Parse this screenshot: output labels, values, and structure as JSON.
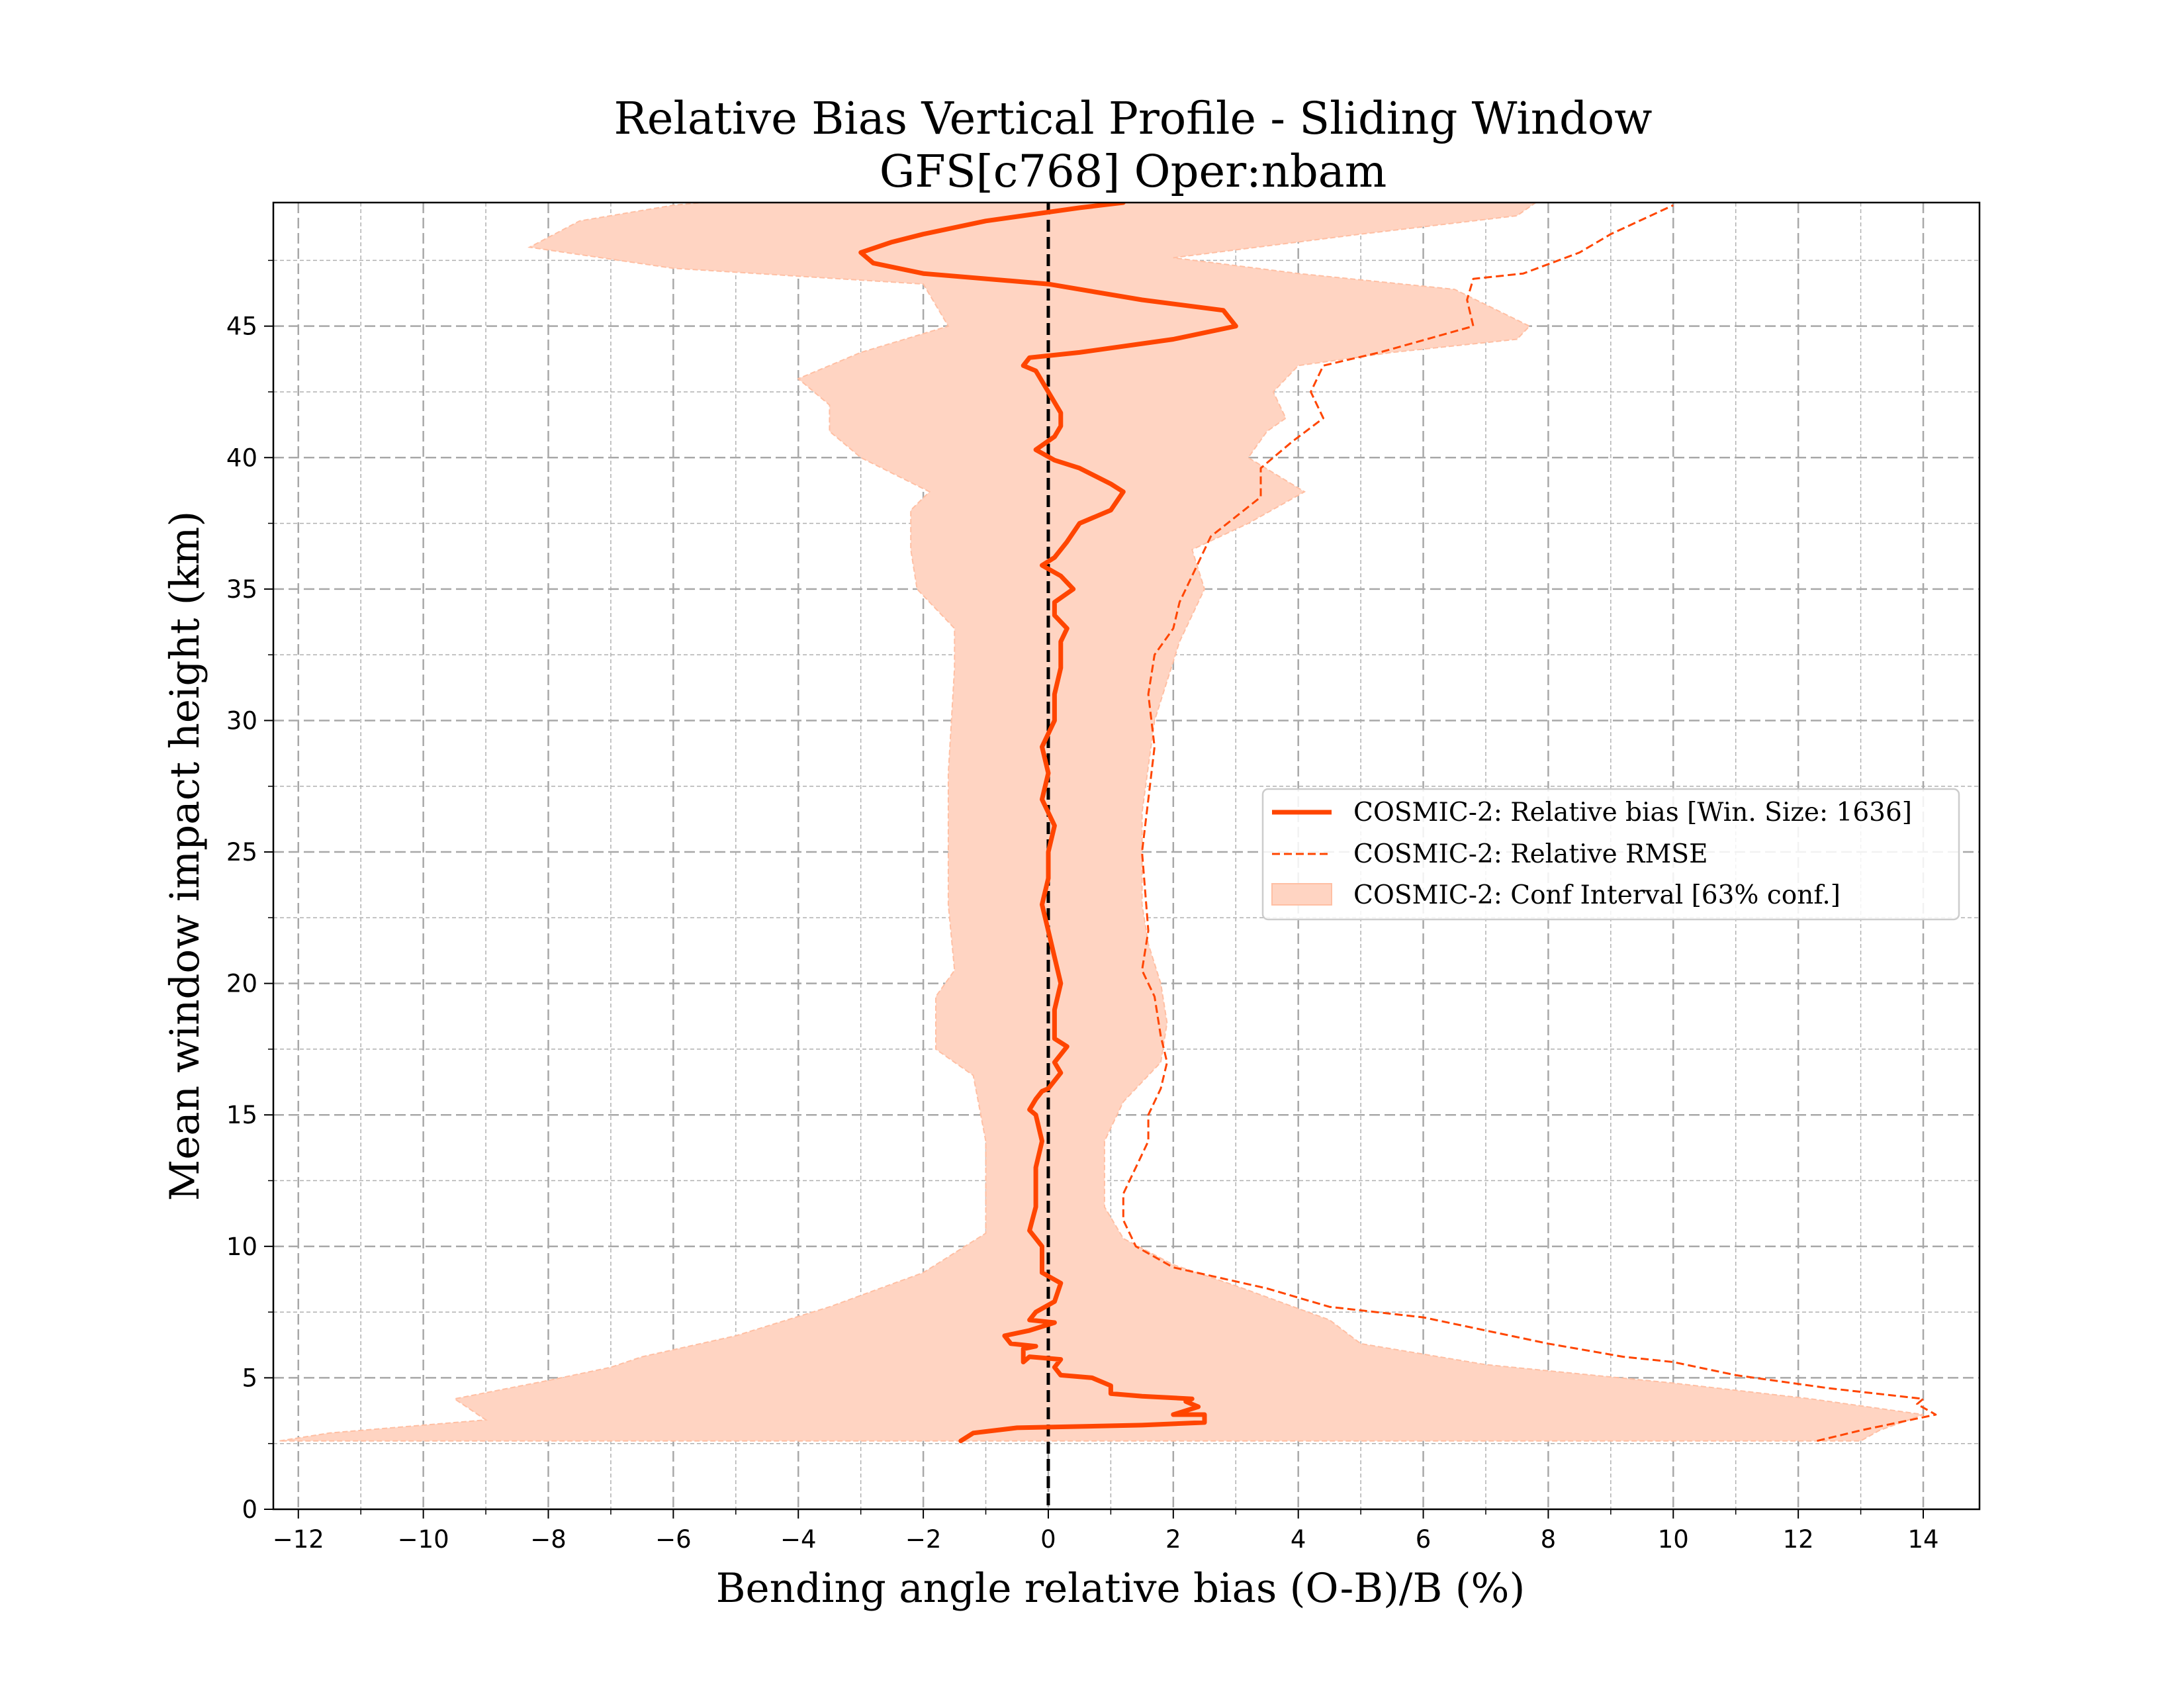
{
  "chart_data": {
    "type": "line",
    "title": "Relative Bias Vertical Profile - Sliding Window",
    "subtitle": "GFS[c768] Oper:nbam",
    "xlabel": "Bending angle relative bias (O-B)/B (%)",
    "ylabel": "Mean window impact height (km)",
    "xlim": [
      -12.4,
      14.9
    ],
    "ylim": [
      0,
      49.7
    ],
    "x_ticks": [
      -12,
      -10,
      -8,
      -6,
      -4,
      -2,
      0,
      2,
      4,
      6,
      8,
      10,
      12,
      14
    ],
    "x_tick_labels": [
      "−12",
      "−10",
      "−8",
      "−6",
      "−4",
      "−2",
      "0",
      "2",
      "4",
      "6",
      "8",
      "10",
      "12",
      "14"
    ],
    "y_ticks": [
      0,
      5,
      10,
      15,
      20,
      25,
      30,
      35,
      40,
      45
    ],
    "y_tick_labels": [
      "0",
      "5",
      "10",
      "15",
      "20",
      "25",
      "30",
      "35",
      "40",
      "45"
    ],
    "grid": true,
    "minor_grid": true,
    "reference_line_x": 0,
    "legend_position": "center-right",
    "colors": {
      "bias": "#ff4500",
      "rmse": "#ff4500",
      "ci_fill": "#ffd4c2",
      "ci_edge": "#ffbfa3",
      "zero_line": "#000000"
    },
    "series": [
      {
        "name": "COSMIC-2: Relative bias [Win. Size: 1636]",
        "style": "solid",
        "points": [
          [
            -1.4,
            2.6
          ],
          [
            -1.2,
            2.9
          ],
          [
            -0.5,
            3.1
          ],
          [
            1.5,
            3.2
          ],
          [
            2.5,
            3.3
          ],
          [
            2.5,
            3.6
          ],
          [
            2.0,
            3.6
          ],
          [
            2.4,
            3.9
          ],
          [
            2.2,
            4.1
          ],
          [
            2.3,
            4.2
          ],
          [
            1.5,
            4.3
          ],
          [
            1.0,
            4.4
          ],
          [
            1.0,
            4.7
          ],
          [
            0.7,
            5.0
          ],
          [
            0.2,
            5.1
          ],
          [
            0.1,
            5.4
          ],
          [
            0.2,
            5.7
          ],
          [
            -0.3,
            5.8
          ],
          [
            -0.4,
            5.6
          ],
          [
            -0.4,
            6.1
          ],
          [
            -0.2,
            6.2
          ],
          [
            -0.6,
            6.3
          ],
          [
            -0.7,
            6.6
          ],
          [
            -0.3,
            6.8
          ],
          [
            0.1,
            7.1
          ],
          [
            -0.3,
            7.2
          ],
          [
            -0.2,
            7.5
          ],
          [
            0.1,
            7.9
          ],
          [
            0.2,
            8.6
          ],
          [
            -0.1,
            9.0
          ],
          [
            -0.1,
            10.0
          ],
          [
            -0.3,
            10.6
          ],
          [
            -0.2,
            11.5
          ],
          [
            -0.2,
            12.0
          ],
          [
            -0.2,
            13.0
          ],
          [
            -0.1,
            14.0
          ],
          [
            -0.2,
            15.0
          ],
          [
            -0.3,
            15.2
          ],
          [
            -0.2,
            15.6
          ],
          [
            -0.1,
            15.9
          ],
          [
            0.0,
            16.0
          ],
          [
            0.2,
            16.6
          ],
          [
            0.1,
            17.0
          ],
          [
            0.3,
            17.6
          ],
          [
            0.1,
            17.9
          ],
          [
            0.1,
            19.0
          ],
          [
            0.2,
            20.0
          ],
          [
            0.1,
            21.0
          ],
          [
            0.0,
            22.0
          ],
          [
            -0.1,
            23.0
          ],
          [
            0.0,
            24.0
          ],
          [
            0.0,
            25.0
          ],
          [
            0.1,
            26.0
          ],
          [
            -0.1,
            27.0
          ],
          [
            0.0,
            28.0
          ],
          [
            -0.1,
            29.0
          ],
          [
            0.1,
            30.0
          ],
          [
            0.1,
            31.0
          ],
          [
            0.2,
            32.0
          ],
          [
            0.2,
            33.0
          ],
          [
            0.3,
            33.5
          ],
          [
            0.1,
            34.0
          ],
          [
            0.1,
            34.5
          ],
          [
            0.4,
            35.0
          ],
          [
            0.2,
            35.5
          ],
          [
            -0.1,
            35.9
          ],
          [
            0.1,
            36.2
          ],
          [
            0.3,
            36.8
          ],
          [
            0.5,
            37.5
          ],
          [
            1.0,
            38.0
          ],
          [
            1.2,
            38.7
          ],
          [
            1.0,
            39.0
          ],
          [
            0.5,
            39.6
          ],
          [
            0.1,
            39.9
          ],
          [
            -0.2,
            40.3
          ],
          [
            0.1,
            40.8
          ],
          [
            0.2,
            41.2
          ],
          [
            0.2,
            41.7
          ],
          [
            0.0,
            42.5
          ],
          [
            -0.2,
            43.3
          ],
          [
            -0.4,
            43.5
          ],
          [
            -0.3,
            43.8
          ],
          [
            0.5,
            44.0
          ],
          [
            2.0,
            44.5
          ],
          [
            3.0,
            45.0
          ],
          [
            2.8,
            45.6
          ],
          [
            1.5,
            46.0
          ],
          [
            0.0,
            46.6
          ],
          [
            -2.0,
            47.0
          ],
          [
            -2.8,
            47.4
          ],
          [
            -3.0,
            47.8
          ],
          [
            -2.5,
            48.2
          ],
          [
            -2.0,
            48.5
          ],
          [
            -1.0,
            49.0
          ],
          [
            0.5,
            49.5
          ],
          [
            1.2,
            49.7
          ]
        ]
      },
      {
        "name": "COSMIC-2: Relative RMSE",
        "style": "dashed",
        "points": [
          [
            12.3,
            2.6
          ],
          [
            13.0,
            3.0
          ],
          [
            14.2,
            3.6
          ],
          [
            13.9,
            4.0
          ],
          [
            14.0,
            4.2
          ],
          [
            12.5,
            4.6
          ],
          [
            11.0,
            5.1
          ],
          [
            10.0,
            5.6
          ],
          [
            9.2,
            5.8
          ],
          [
            8.0,
            6.3
          ],
          [
            6.0,
            7.3
          ],
          [
            4.5,
            7.7
          ],
          [
            3.5,
            8.4
          ],
          [
            2.0,
            9.2
          ],
          [
            1.4,
            10.0
          ],
          [
            1.2,
            11.0
          ],
          [
            1.2,
            12.0
          ],
          [
            1.4,
            13.0
          ],
          [
            1.6,
            14.0
          ],
          [
            1.6,
            15.0
          ],
          [
            1.8,
            16.0
          ],
          [
            1.9,
            17.0
          ],
          [
            1.8,
            18.0
          ],
          [
            1.7,
            19.5
          ],
          [
            1.5,
            20.5
          ],
          [
            1.6,
            22.0
          ],
          [
            1.5,
            25.0
          ],
          [
            1.6,
            27.0
          ],
          [
            1.7,
            29.0
          ],
          [
            1.6,
            31.0
          ],
          [
            1.7,
            32.5
          ],
          [
            2.0,
            33.5
          ],
          [
            2.1,
            34.5
          ],
          [
            2.3,
            35.5
          ],
          [
            2.6,
            37.0
          ],
          [
            3.4,
            38.5
          ],
          [
            3.4,
            39.6
          ],
          [
            3.9,
            40.6
          ],
          [
            4.4,
            41.5
          ],
          [
            4.2,
            42.5
          ],
          [
            4.4,
            43.5
          ],
          [
            5.3,
            44.0
          ],
          [
            6.8,
            45.0
          ],
          [
            6.7,
            46.0
          ],
          [
            6.8,
            46.8
          ],
          [
            7.6,
            47.0
          ],
          [
            8.5,
            47.8
          ],
          [
            9.0,
            48.5
          ],
          [
            10.0,
            49.6
          ]
        ]
      },
      {
        "name": "COSMIC-2: Conf Interval [63% conf.]",
        "style": "band",
        "lower": [
          [
            -12.3,
            2.6
          ],
          [
            -11.5,
            2.9
          ],
          [
            -9.0,
            3.4
          ],
          [
            -9.5,
            4.2
          ],
          [
            -8.0,
            4.9
          ],
          [
            -7.0,
            5.4
          ],
          [
            -6.5,
            5.8
          ],
          [
            -5.0,
            6.6
          ],
          [
            -3.5,
            7.7
          ],
          [
            -2.0,
            9.0
          ],
          [
            -1.0,
            10.5
          ],
          [
            -1.0,
            14.0
          ],
          [
            -1.2,
            16.5
          ],
          [
            -1.8,
            17.5
          ],
          [
            -1.8,
            19.5
          ],
          [
            -1.5,
            20.5
          ],
          [
            -1.6,
            23.0
          ],
          [
            -1.6,
            28.0
          ],
          [
            -1.5,
            32.0
          ],
          [
            -1.5,
            33.5
          ],
          [
            -2.1,
            35.0
          ],
          [
            -2.2,
            36.5
          ],
          [
            -2.2,
            38.0
          ],
          [
            -1.9,
            38.7
          ],
          [
            -3.0,
            40.0
          ],
          [
            -3.5,
            41.0
          ],
          [
            -3.5,
            42.0
          ],
          [
            -4.0,
            43.0
          ],
          [
            -3.0,
            44.0
          ],
          [
            -1.6,
            45.0
          ],
          [
            -2.0,
            46.6
          ],
          [
            -6.0,
            47.2
          ],
          [
            -8.3,
            48.0
          ],
          [
            -7.5,
            49.0
          ],
          [
            -6.0,
            49.6
          ],
          [
            -5.5,
            49.7
          ]
        ],
        "upper": [
          [
            13.0,
            2.6
          ],
          [
            13.3,
            3.0
          ],
          [
            14.0,
            3.6
          ],
          [
            12.2,
            4.2
          ],
          [
            10.0,
            4.8
          ],
          [
            7.0,
            5.5
          ],
          [
            5.0,
            6.3
          ],
          [
            4.5,
            7.2
          ],
          [
            3.0,
            8.5
          ],
          [
            2.0,
            9.3
          ],
          [
            1.2,
            10.3
          ],
          [
            0.9,
            11.5
          ],
          [
            0.9,
            14.0
          ],
          [
            1.2,
            15.5
          ],
          [
            1.8,
            17.0
          ],
          [
            1.9,
            18.5
          ],
          [
            1.8,
            20.0
          ],
          [
            1.6,
            21.5
          ],
          [
            1.5,
            23.0
          ],
          [
            1.5,
            26.5
          ],
          [
            1.7,
            30.0
          ],
          [
            2.1,
            33.0
          ],
          [
            2.5,
            35.0
          ],
          [
            2.3,
            36.5
          ],
          [
            3.2,
            37.5
          ],
          [
            4.1,
            38.7
          ],
          [
            3.2,
            40.0
          ],
          [
            3.5,
            41.0
          ],
          [
            3.8,
            41.5
          ],
          [
            3.6,
            42.5
          ],
          [
            4.0,
            43.5
          ],
          [
            5.5,
            44.0
          ],
          [
            7.5,
            44.5
          ],
          [
            7.7,
            45.0
          ],
          [
            6.5,
            46.4
          ],
          [
            4.0,
            47.0
          ],
          [
            2.0,
            47.6
          ],
          [
            5.0,
            48.5
          ],
          [
            7.5,
            49.2
          ],
          [
            7.8,
            49.7
          ]
        ]
      }
    ]
  },
  "legend": [
    {
      "label": "COSMIC-2: Relative bias [Win. Size: 1636]"
    },
    {
      "label": "COSMIC-2: Relative RMSE"
    },
    {
      "label": "COSMIC-2: Conf Interval [63% conf.]"
    }
  ]
}
